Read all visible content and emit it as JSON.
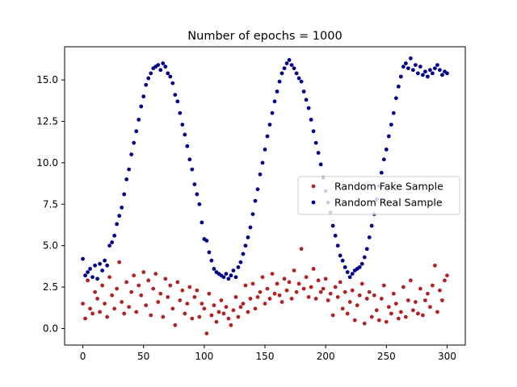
{
  "chart_data": {
    "type": "scatter",
    "title": "Number of epochs = 1000",
    "xlabel": "",
    "ylabel": "",
    "xlim": [
      -15,
      315
    ],
    "ylim": [
      -1.0,
      17.0
    ],
    "x_ticks": [
      0,
      50,
      100,
      150,
      200,
      250,
      300
    ],
    "y_ticks": [
      0.0,
      2.5,
      5.0,
      7.5,
      10.0,
      12.5,
      15.0
    ],
    "x_tick_labels": [
      "0",
      "50",
      "100",
      "150",
      "200",
      "250",
      "300"
    ],
    "y_tick_labels": [
      "0.0",
      "2.5",
      "5.0",
      "7.5",
      "10.0",
      "12.5",
      "15.0"
    ],
    "grid": false,
    "legend_position": "center-right",
    "series": [
      {
        "name": "Random Fake Sample",
        "color": "#b22222",
        "x": [
          0,
          2,
          4,
          6,
          8,
          10,
          12,
          14,
          16,
          18,
          20,
          22,
          24,
          26,
          28,
          30,
          32,
          34,
          36,
          38,
          40,
          42,
          44,
          46,
          48,
          50,
          52,
          54,
          56,
          58,
          60,
          62,
          64,
          66,
          68,
          70,
          72,
          74,
          76,
          78,
          80,
          82,
          84,
          86,
          88,
          90,
          92,
          94,
          96,
          98,
          100,
          102,
          104,
          106,
          108,
          110,
          112,
          114,
          116,
          118,
          120,
          122,
          124,
          126,
          128,
          130,
          132,
          134,
          136,
          138,
          140,
          142,
          144,
          146,
          148,
          150,
          152,
          154,
          156,
          158,
          160,
          162,
          164,
          166,
          168,
          170,
          172,
          174,
          176,
          178,
          180,
          182,
          184,
          186,
          188,
          190,
          192,
          194,
          196,
          198,
          200,
          202,
          204,
          206,
          208,
          210,
          212,
          214,
          216,
          218,
          220,
          222,
          224,
          226,
          228,
          230,
          232,
          234,
          236,
          238,
          240,
          242,
          244,
          246,
          248,
          250,
          252,
          254,
          256,
          258,
          260,
          262,
          264,
          266,
          268,
          270,
          272,
          274,
          276,
          278,
          280,
          282,
          284,
          286,
          288,
          290,
          292,
          294,
          296,
          298,
          300
        ],
        "y": [
          1.5,
          0.6,
          2.9,
          1.2,
          0.9,
          2.2,
          1.8,
          1.0,
          2.6,
          1.5,
          0.7,
          3.1,
          2.0,
          1.2,
          2.4,
          4.0,
          1.6,
          0.9,
          2.8,
          1.3,
          2.2,
          3.2,
          1.0,
          2.6,
          2.0,
          3.4,
          1.4,
          2.9,
          0.8,
          2.4,
          3.3,
          1.6,
          2.1,
          0.7,
          3.0,
          1.9,
          2.6,
          1.2,
          0.2,
          2.8,
          1.7,
          2.3,
          0.9,
          1.5,
          2.5,
          0.6,
          1.9,
          2.3,
          0.7,
          1.5,
          1.2,
          -0.3,
          2.1,
          0.8,
          1.4,
          0.4,
          1.0,
          1.7,
          0.9,
          1.3,
          0.6,
          0.2,
          1.1,
          1.9,
          0.7,
          1.3,
          1.5,
          2.6,
          1.0,
          1.8,
          2.7,
          1.2,
          1.9,
          2.2,
          3.1,
          1.5,
          2.4,
          1.8,
          3.3,
          2.1,
          2.7,
          2.0,
          1.6,
          3.0,
          2.3,
          2.8,
          1.8,
          3.5,
          2.2,
          2.7,
          4.8,
          2.4,
          3.1,
          1.9,
          2.5,
          3.6,
          1.8,
          2.9,
          2.2,
          2.4,
          3.0,
          1.7,
          2.1,
          0.8,
          2.5,
          1.9,
          2.8,
          1.2,
          2.2,
          0.9,
          1.6,
          2.3,
          0.5,
          1.4,
          2.0,
          2.7,
          0.3,
          1.8,
          2.2,
          0.7,
          2.0,
          1.1,
          0.5,
          1.8,
          2.6,
          0.4,
          1.3,
          0.9,
          2.1,
          1.5,
          0.6,
          1.0,
          2.5,
          0.7,
          1.7,
          2.9,
          1.1,
          1.6,
          0.9,
          2.4,
          0.8,
          1.7,
          2.1,
          1.3,
          2.6,
          3.8,
          1.0,
          2.3,
          1.7,
          2.9,
          3.2
        ]
      },
      {
        "name": "Random Real Sample",
        "color": "#00008b",
        "x": [
          0,
          2,
          4,
          6,
          8,
          10,
          12,
          14,
          16,
          18,
          20,
          22,
          24,
          26,
          28,
          30,
          32,
          34,
          36,
          38,
          40,
          42,
          44,
          46,
          48,
          50,
          52,
          54,
          56,
          58,
          60,
          62,
          64,
          66,
          68,
          70,
          72,
          74,
          76,
          78,
          80,
          82,
          84,
          86,
          88,
          90,
          92,
          94,
          96,
          98,
          100,
          102,
          104,
          106,
          108,
          110,
          112,
          114,
          116,
          118,
          120,
          122,
          124,
          126,
          128,
          130,
          132,
          134,
          136,
          138,
          140,
          142,
          144,
          146,
          148,
          150,
          152,
          154,
          156,
          158,
          160,
          162,
          164,
          166,
          168,
          170,
          172,
          174,
          176,
          178,
          180,
          182,
          184,
          186,
          188,
          190,
          192,
          194,
          196,
          198,
          200,
          202,
          204,
          206,
          208,
          210,
          212,
          214,
          216,
          218,
          220,
          222,
          224,
          226,
          228,
          230,
          232,
          234,
          236,
          238,
          240,
          242,
          244,
          246,
          248,
          250,
          252,
          254,
          256,
          258,
          260,
          262,
          264,
          266,
          268,
          270,
          272,
          274,
          276,
          278,
          280,
          282,
          284,
          286,
          288,
          290,
          292,
          294,
          296,
          298,
          300
        ],
        "y": [
          4.2,
          3.2,
          3.4,
          3.6,
          3.1,
          3.8,
          3.0,
          3.9,
          3.5,
          4.1,
          3.8,
          5.0,
          5.2,
          5.6,
          6.3,
          6.8,
          7.3,
          8.1,
          9.0,
          9.6,
          10.5,
          11.2,
          11.9,
          12.6,
          13.4,
          14.0,
          14.7,
          15.1,
          15.4,
          15.7,
          15.8,
          15.9,
          15.6,
          16.0,
          15.8,
          15.4,
          15.2,
          14.8,
          14.1,
          13.7,
          13.0,
          12.3,
          11.7,
          11.0,
          10.2,
          9.6,
          8.7,
          8.1,
          7.5,
          6.4,
          5.4,
          5.3,
          4.6,
          4.1,
          3.6,
          3.4,
          3.3,
          3.2,
          3.1,
          3.3,
          3.0,
          3.2,
          3.5,
          3.1,
          3.7,
          4.0,
          4.5,
          5.0,
          5.5,
          6.1,
          6.9,
          7.7,
          8.4,
          9.3,
          10.0,
          10.8,
          11.6,
          12.3,
          13.0,
          13.7,
          14.3,
          14.9,
          15.4,
          15.7,
          16.0,
          16.2,
          15.9,
          15.7,
          15.4,
          15.1,
          14.9,
          14.3,
          13.8,
          13.3,
          12.6,
          11.9,
          11.2,
          10.6,
          9.9,
          9.1,
          8.3,
          7.6,
          7.0,
          6.2,
          5.6,
          5.0,
          4.4,
          4.1,
          3.7,
          3.4,
          3.1,
          3.3,
          3.5,
          3.6,
          3.7,
          3.9,
          4.3,
          4.8,
          5.5,
          6.2,
          6.9,
          7.8,
          8.6,
          9.4,
          10.2,
          10.8,
          11.6,
          12.3,
          13.0,
          13.9,
          14.6,
          15.2,
          15.8,
          16.0,
          15.7,
          16.3,
          15.6,
          15.9,
          15.4,
          15.8,
          15.3,
          15.5,
          15.2,
          15.6,
          15.4,
          15.7,
          15.9,
          15.6,
          15.3,
          15.5,
          15.4
        ]
      }
    ]
  }
}
